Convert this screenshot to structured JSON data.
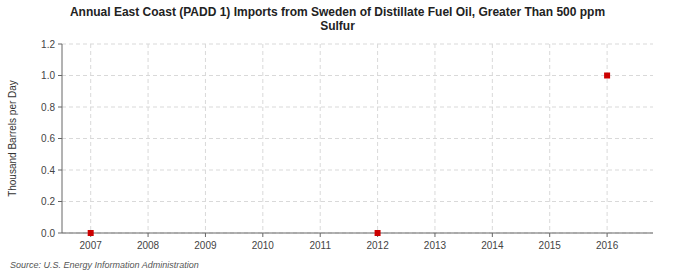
{
  "chart_data": {
    "type": "scatter",
    "title": "Annual East Coast (PADD 1) Imports from Sweden of Distillate Fuel Oil, Greater Than 500 ppm\nSulfur",
    "y_label": "Thousand Barrels per Day",
    "source": "Source: U.S. Energy Information Administration",
    "x": [
      2007,
      2012,
      2016
    ],
    "values": [
      0.0,
      0.0,
      1.0
    ],
    "color": "#cc0000",
    "marker": "square",
    "xlim": [
      2006.5,
      2016.8
    ],
    "ylim": [
      0.0,
      1.2
    ],
    "xticks": [
      2007,
      2008,
      2009,
      2010,
      2011,
      2012,
      2013,
      2014,
      2015,
      2016
    ],
    "yticks": [
      {
        "value": 0.0,
        "label": "0.0"
      },
      {
        "value": 0.2,
        "label": "0.2"
      },
      {
        "value": 0.4,
        "label": "0.4"
      },
      {
        "value": 0.6,
        "label": "0.6"
      },
      {
        "value": 0.8,
        "label": "0.8"
      },
      {
        "value": 1.0,
        "label": "1.0"
      },
      {
        "value": 1.2,
        "label": "1.2"
      }
    ],
    "grid": true
  }
}
